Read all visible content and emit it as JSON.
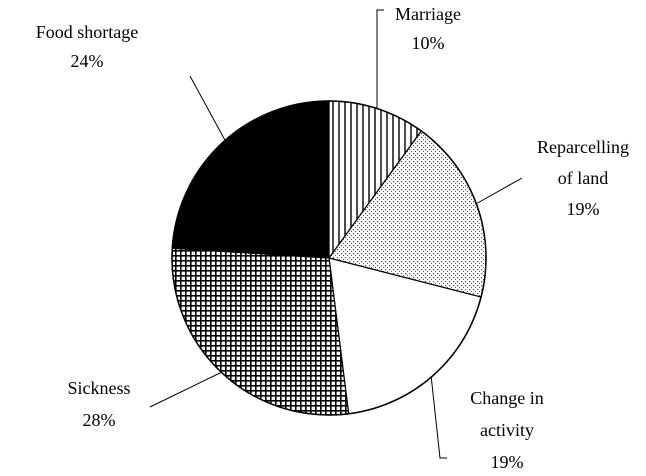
{
  "chart_data": {
    "type": "pie",
    "categories": [
      [
        "Marriage"
      ],
      [
        "Reparcelling",
        "of land"
      ],
      [
        "Change in",
        "activity"
      ],
      [
        "Sickness"
      ],
      [
        "Food shortage"
      ]
    ],
    "values": [
      10,
      19,
      19,
      28,
      24
    ],
    "value_labels": [
      "10%",
      "19%",
      "19%",
      "28%",
      "24%"
    ],
    "patterns": [
      "vertical-lines",
      "dots",
      "none",
      "grid",
      "solid"
    ]
  }
}
